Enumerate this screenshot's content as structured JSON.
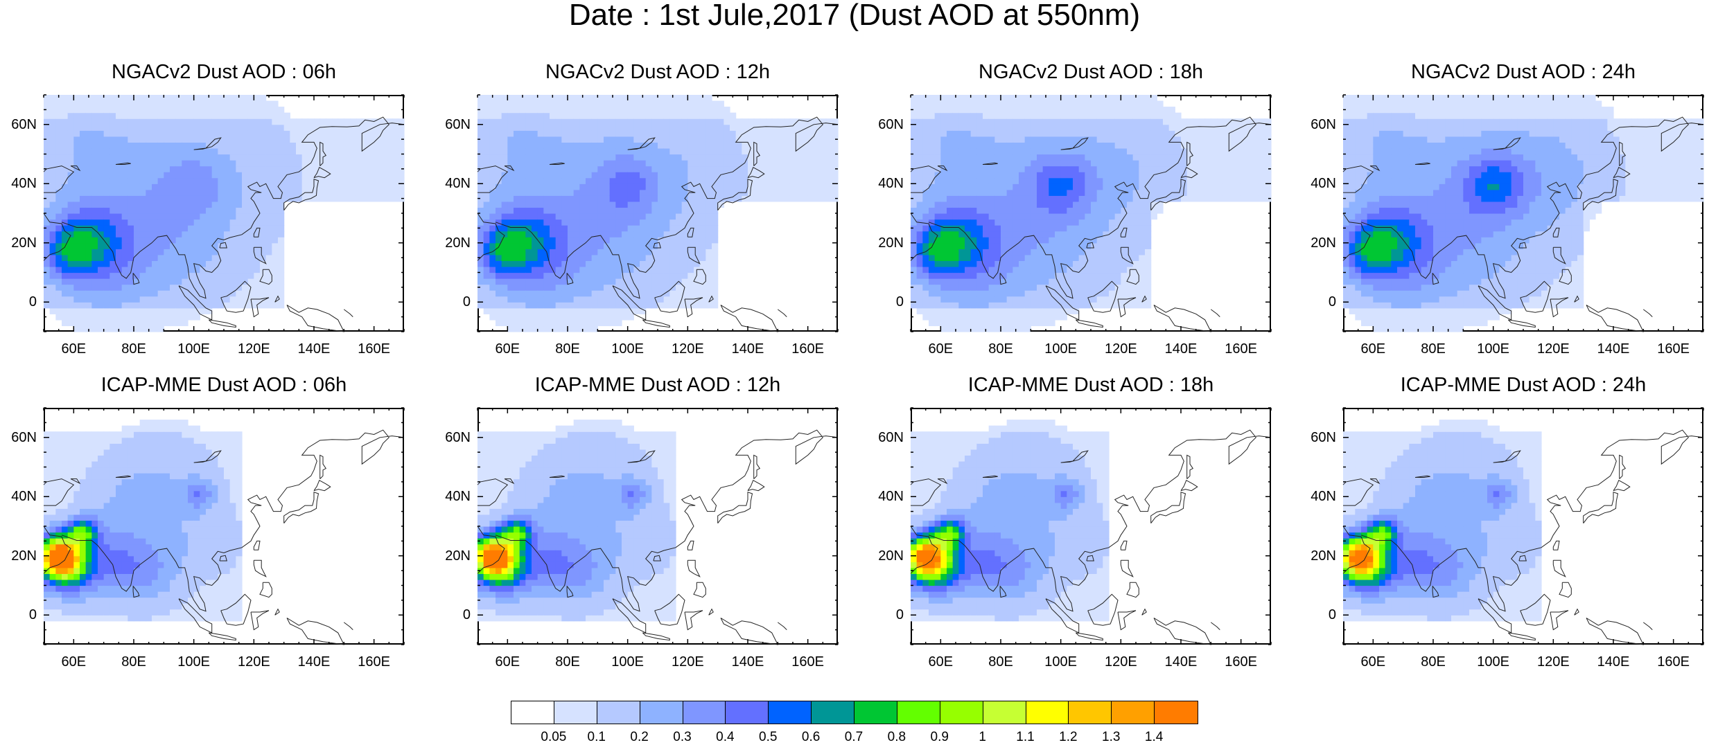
{
  "title": "Date : 1st Jule,2017 (Dust AOD at 550nm)",
  "panels": [
    {
      "title": "NGACv2 Dust AOD : 06h",
      "model": "NGACv2",
      "hour": "06h"
    },
    {
      "title": "NGACv2 Dust AOD : 12h",
      "model": "NGACv2",
      "hour": "12h"
    },
    {
      "title": "NGACv2 Dust AOD : 18h",
      "model": "NGACv2",
      "hour": "18h"
    },
    {
      "title": "NGACv2 Dust AOD : 24h",
      "model": "NGACv2",
      "hour": "24h"
    },
    {
      "title": "ICAP-MME Dust AOD : 06h",
      "model": "ICAP-MME",
      "hour": "06h"
    },
    {
      "title": "ICAP-MME Dust AOD : 12h",
      "model": "ICAP-MME",
      "hour": "12h"
    },
    {
      "title": "ICAP-MME Dust AOD : 18h",
      "model": "ICAP-MME",
      "hour": "18h"
    },
    {
      "title": "ICAP-MME Dust AOD : 24h",
      "model": "ICAP-MME",
      "hour": "24h"
    }
  ],
  "axes": {
    "lon_range": [
      50,
      170
    ],
    "lat_range": [
      -10,
      70
    ],
    "lon_ticks": [
      "60E",
      "80E",
      "100E",
      "120E",
      "140E",
      "160E"
    ],
    "lon_tick_values": [
      60,
      80,
      100,
      120,
      140,
      160
    ],
    "lat_ticks": [
      "60N",
      "40N",
      "20N",
      "0"
    ],
    "lat_tick_values": [
      60,
      40,
      20,
      0
    ]
  },
  "colorbar": {
    "labels": [
      "0.05",
      "0.1",
      "0.2",
      "0.3",
      "0.4",
      "0.5",
      "0.6",
      "0.7",
      "0.8",
      "0.9",
      "1",
      "1.1",
      "1.2",
      "1.3",
      "1.4"
    ],
    "colors": [
      "#ffffff",
      "#d6e2ff",
      "#b5c9ff",
      "#8eb2ff",
      "#7f96ff",
      "#6370ff",
      "#0063ff",
      "#009696",
      "#00c633",
      "#63ff00",
      "#96ff00",
      "#c6ff33",
      "#ffff00",
      "#ffc600",
      "#ffa000",
      "#ff7c00",
      "#ff1900"
    ]
  }
}
